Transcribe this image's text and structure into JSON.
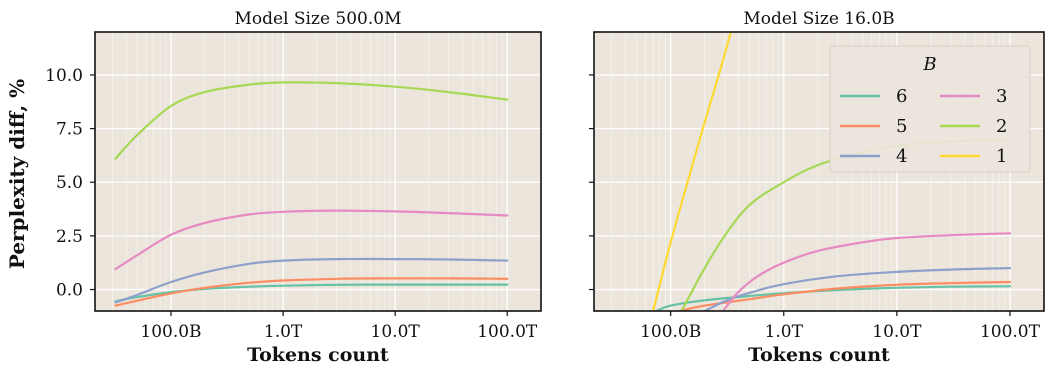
{
  "figure": {
    "ylabel": "Perplexity diff, %",
    "xlabel": "Tokens count"
  },
  "colors": {
    "6": "#66c2a5",
    "5": "#fc8d62",
    "4": "#8da0cb",
    "3": "#e78ac3",
    "2": "#a6d854",
    "1": "#ffd92f",
    "panel_bg": "#ebe5dc",
    "grid": "#ffffff"
  },
  "chart_data": [
    {
      "type": "line",
      "title": "Model Size 500.0M",
      "xlabel": "Tokens count",
      "ylabel": "Perplexity diff, %",
      "xscale": "log",
      "xlim": [
        21000000000.0,
        200000000000000.0
      ],
      "ylim": [
        -1.0,
        12.0
      ],
      "x_ticks": [
        100000000000.0,
        1000000000000.0,
        10000000000000.0,
        100000000000000.0
      ],
      "x_tick_labels": [
        "100.0B",
        "1.0T",
        "10.0T",
        "100.0T"
      ],
      "y_ticks": [
        0,
        2.5,
        5,
        7.5,
        10
      ],
      "y_tick_labels": [
        "0.0",
        "2.5",
        "5.0",
        "7.5",
        "10.0"
      ],
      "grid": true,
      "legend": false,
      "x": [
        32000000000.0,
        50000000000.0,
        100000000000.0,
        200000000000.0,
        500000000000.0,
        1000000000000.0,
        3000000000000.0,
        10000000000000.0,
        30000000000000.0,
        100000000000000.0
      ],
      "series": [
        {
          "name": "6",
          "color": "#66c2a5",
          "values": [
            -0.55,
            -0.35,
            -0.12,
            0.03,
            0.13,
            0.18,
            0.22,
            0.23,
            0.23,
            0.23
          ]
        },
        {
          "name": "5",
          "color": "#fc8d62",
          "values": [
            -0.75,
            -0.52,
            -0.18,
            0.08,
            0.32,
            0.42,
            0.5,
            0.52,
            0.52,
            0.5
          ]
        },
        {
          "name": "4",
          "color": "#8da0cb",
          "values": [
            -0.6,
            -0.25,
            0.35,
            0.8,
            1.2,
            1.35,
            1.42,
            1.42,
            1.4,
            1.35
          ]
        },
        {
          "name": "3",
          "color": "#e78ac3",
          "values": [
            0.95,
            1.6,
            2.55,
            3.1,
            3.5,
            3.62,
            3.68,
            3.64,
            3.56,
            3.45
          ]
        },
        {
          "name": "2",
          "color": "#a6d854",
          "values": [
            6.1,
            7.2,
            8.55,
            9.2,
            9.55,
            9.65,
            9.62,
            9.45,
            9.2,
            8.85
          ]
        }
      ]
    },
    {
      "type": "line",
      "title": "Model Size 16.0B",
      "xlabel": "Tokens count",
      "xscale": "log",
      "xlim": [
        21000000000.0,
        200000000000000.0
      ],
      "ylim": [
        -1.0,
        12.0
      ],
      "x_ticks": [
        100000000000.0,
        1000000000000.0,
        10000000000000.0,
        100000000000000.0
      ],
      "x_tick_labels": [
        "100.0B",
        "1.0T",
        "10.0T",
        "100.0T"
      ],
      "grid": true,
      "legend": {
        "title": "B",
        "placement": "top-right",
        "columns": 2,
        "order": [
          "6",
          "5",
          "4",
          "3",
          "2",
          "1"
        ]
      },
      "series": [
        {
          "name": "6",
          "color": "#66c2a5",
          "x": [
            75000000000.0,
            100000000000.0,
            200000000000.0,
            500000000000.0,
            1000000000000.0,
            3000000000000.0,
            10000000000000.0,
            30000000000000.0,
            100000000000000.0
          ],
          "values": [
            -1.0,
            -0.75,
            -0.5,
            -0.3,
            -0.17,
            -0.02,
            0.08,
            0.13,
            0.15
          ]
        },
        {
          "name": "5",
          "color": "#fc8d62",
          "x": [
            120000000000.0,
            200000000000.0,
            500000000000.0,
            1000000000000.0,
            3000000000000.0,
            10000000000000.0,
            30000000000000.0,
            100000000000000.0
          ],
          "values": [
            -1.0,
            -0.75,
            -0.45,
            -0.22,
            0.05,
            0.22,
            0.3,
            0.35
          ]
        },
        {
          "name": "4",
          "color": "#8da0cb",
          "x": [
            200000000000.0,
            300000000000.0,
            500000000000.0,
            1000000000000.0,
            3000000000000.0,
            10000000000000.0,
            30000000000000.0,
            100000000000000.0
          ],
          "values": [
            -1.0,
            -0.55,
            -0.15,
            0.25,
            0.62,
            0.82,
            0.93,
            1.0
          ]
        },
        {
          "name": "3",
          "color": "#e78ac3",
          "x": [
            290000000000.0,
            400000000000.0,
            600000000000.0,
            1000000000000.0,
            2000000000000.0,
            5000000000000.0,
            10000000000000.0,
            30000000000000.0,
            100000000000000.0
          ],
          "values": [
            -1.0,
            -0.1,
            0.65,
            1.25,
            1.8,
            2.2,
            2.4,
            2.53,
            2.62
          ]
        },
        {
          "name": "2",
          "color": "#a6d854",
          "x": [
            125000000000.0,
            200000000000.0,
            300000000000.0,
            500000000000.0,
            1000000000000.0,
            2000000000000.0,
            5000000000000.0,
            10000000000000.0,
            30000000000000.0,
            100000000000000.0
          ],
          "values": [
            -1.0,
            1.0,
            2.5,
            3.95,
            5.0,
            5.8,
            6.4,
            6.7,
            6.9,
            7.0
          ]
        },
        {
          "name": "1",
          "color": "#ffd92f",
          "x": [
            70000000000.0,
            100000000000.0,
            150000000000.0,
            200000000000.0,
            270000000000.0,
            340000000000.0
          ],
          "values": [
            -1.0,
            2.2,
            5.5,
            7.8,
            10.1,
            12.0
          ]
        }
      ]
    }
  ]
}
